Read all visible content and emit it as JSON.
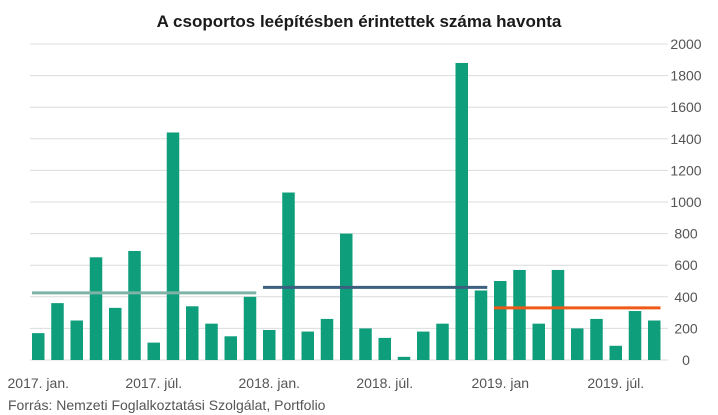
{
  "chart_data": {
    "type": "bar",
    "title": "A csoportos leépítésben érintettek száma havonta",
    "source": "Forrás: Nemzeti Foglalkoztatási Szolgálat, Portfolio",
    "xlabel": "",
    "ylabel": "",
    "ylim": [
      0,
      2000
    ],
    "yticks": [
      0,
      200,
      400,
      600,
      800,
      1000,
      1200,
      1400,
      1600,
      1800,
      2000
    ],
    "y_axis_side": "right",
    "grid": true,
    "xtick_labels": [
      {
        "index": 0,
        "label": "2017. jan."
      },
      {
        "index": 6,
        "label": "2017. júl."
      },
      {
        "index": 12,
        "label": "2018. jan."
      },
      {
        "index": 18,
        "label": "2018. júl."
      },
      {
        "index": 24,
        "label": "2019. jan"
      },
      {
        "index": 30,
        "label": "2019. júl."
      }
    ],
    "values": [
      170,
      360,
      250,
      650,
      330,
      690,
      110,
      1440,
      340,
      230,
      150,
      400,
      190,
      1060,
      180,
      260,
      800,
      200,
      140,
      20,
      180,
      230,
      1880,
      440,
      500,
      570,
      230,
      570,
      200,
      260,
      90,
      310,
      250
    ],
    "bar_color": "#0f9e7b",
    "averages": [
      {
        "from": 0,
        "to": 11,
        "value": 425,
        "color": "#7fb3a8"
      },
      {
        "from": 12,
        "to": 23,
        "value": 460,
        "color": "#3d5f80"
      },
      {
        "from": 24,
        "to": 32,
        "value": 330,
        "color": "#f05a19"
      }
    ]
  }
}
